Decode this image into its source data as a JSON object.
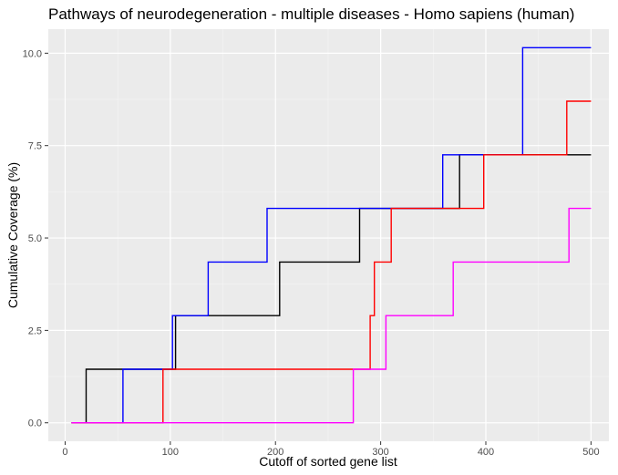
{
  "chart_data": {
    "type": "line",
    "title": "Pathways of neurodegeneration - multiple diseases - Homo sapiens (human)",
    "xlabel": "Cutoff of sorted gene list",
    "ylabel": "Cumulative Coverage (%)",
    "xlim": [
      -16,
      517
    ],
    "ylim": [
      -0.5,
      10.65
    ],
    "x_ticks": [
      0,
      100,
      200,
      300,
      400,
      500
    ],
    "x_tick_labels": [
      "0",
      "100",
      "200",
      "300",
      "400",
      "500"
    ],
    "y_ticks": [
      0,
      2.5,
      5,
      7.5,
      10
    ],
    "y_tick_labels": [
      "0.0",
      "2.5",
      "5.0",
      "7.5",
      "10.0"
    ],
    "step": "post",
    "grid": true,
    "legend": "none",
    "series": [
      {
        "color": "#000000",
        "x": [
          6,
          20,
          105,
          204,
          280,
          375,
          500
        ],
        "y": [
          0,
          1.45,
          2.9,
          4.35,
          5.8,
          7.25,
          7.25
        ]
      },
      {
        "color": "#0000ff",
        "x": [
          6,
          55,
          102,
          136,
          192,
          359,
          435,
          500
        ],
        "y": [
          0,
          1.45,
          2.9,
          4.35,
          5.8,
          7.25,
          10.15,
          10.15
        ]
      },
      {
        "color": "#ff0000",
        "x": [
          6,
          93,
          290,
          294,
          298,
          310,
          398,
          477,
          500
        ],
        "y": [
          0,
          1.45,
          2.9,
          4.35,
          4.35,
          5.8,
          7.25,
          8.7,
          8.7
        ]
      },
      {
        "color": "#ff00ff",
        "x": [
          6,
          274,
          305,
          369,
          479,
          500
        ],
        "y": [
          0,
          1.45,
          2.9,
          4.35,
          5.8,
          5.8
        ]
      }
    ]
  }
}
